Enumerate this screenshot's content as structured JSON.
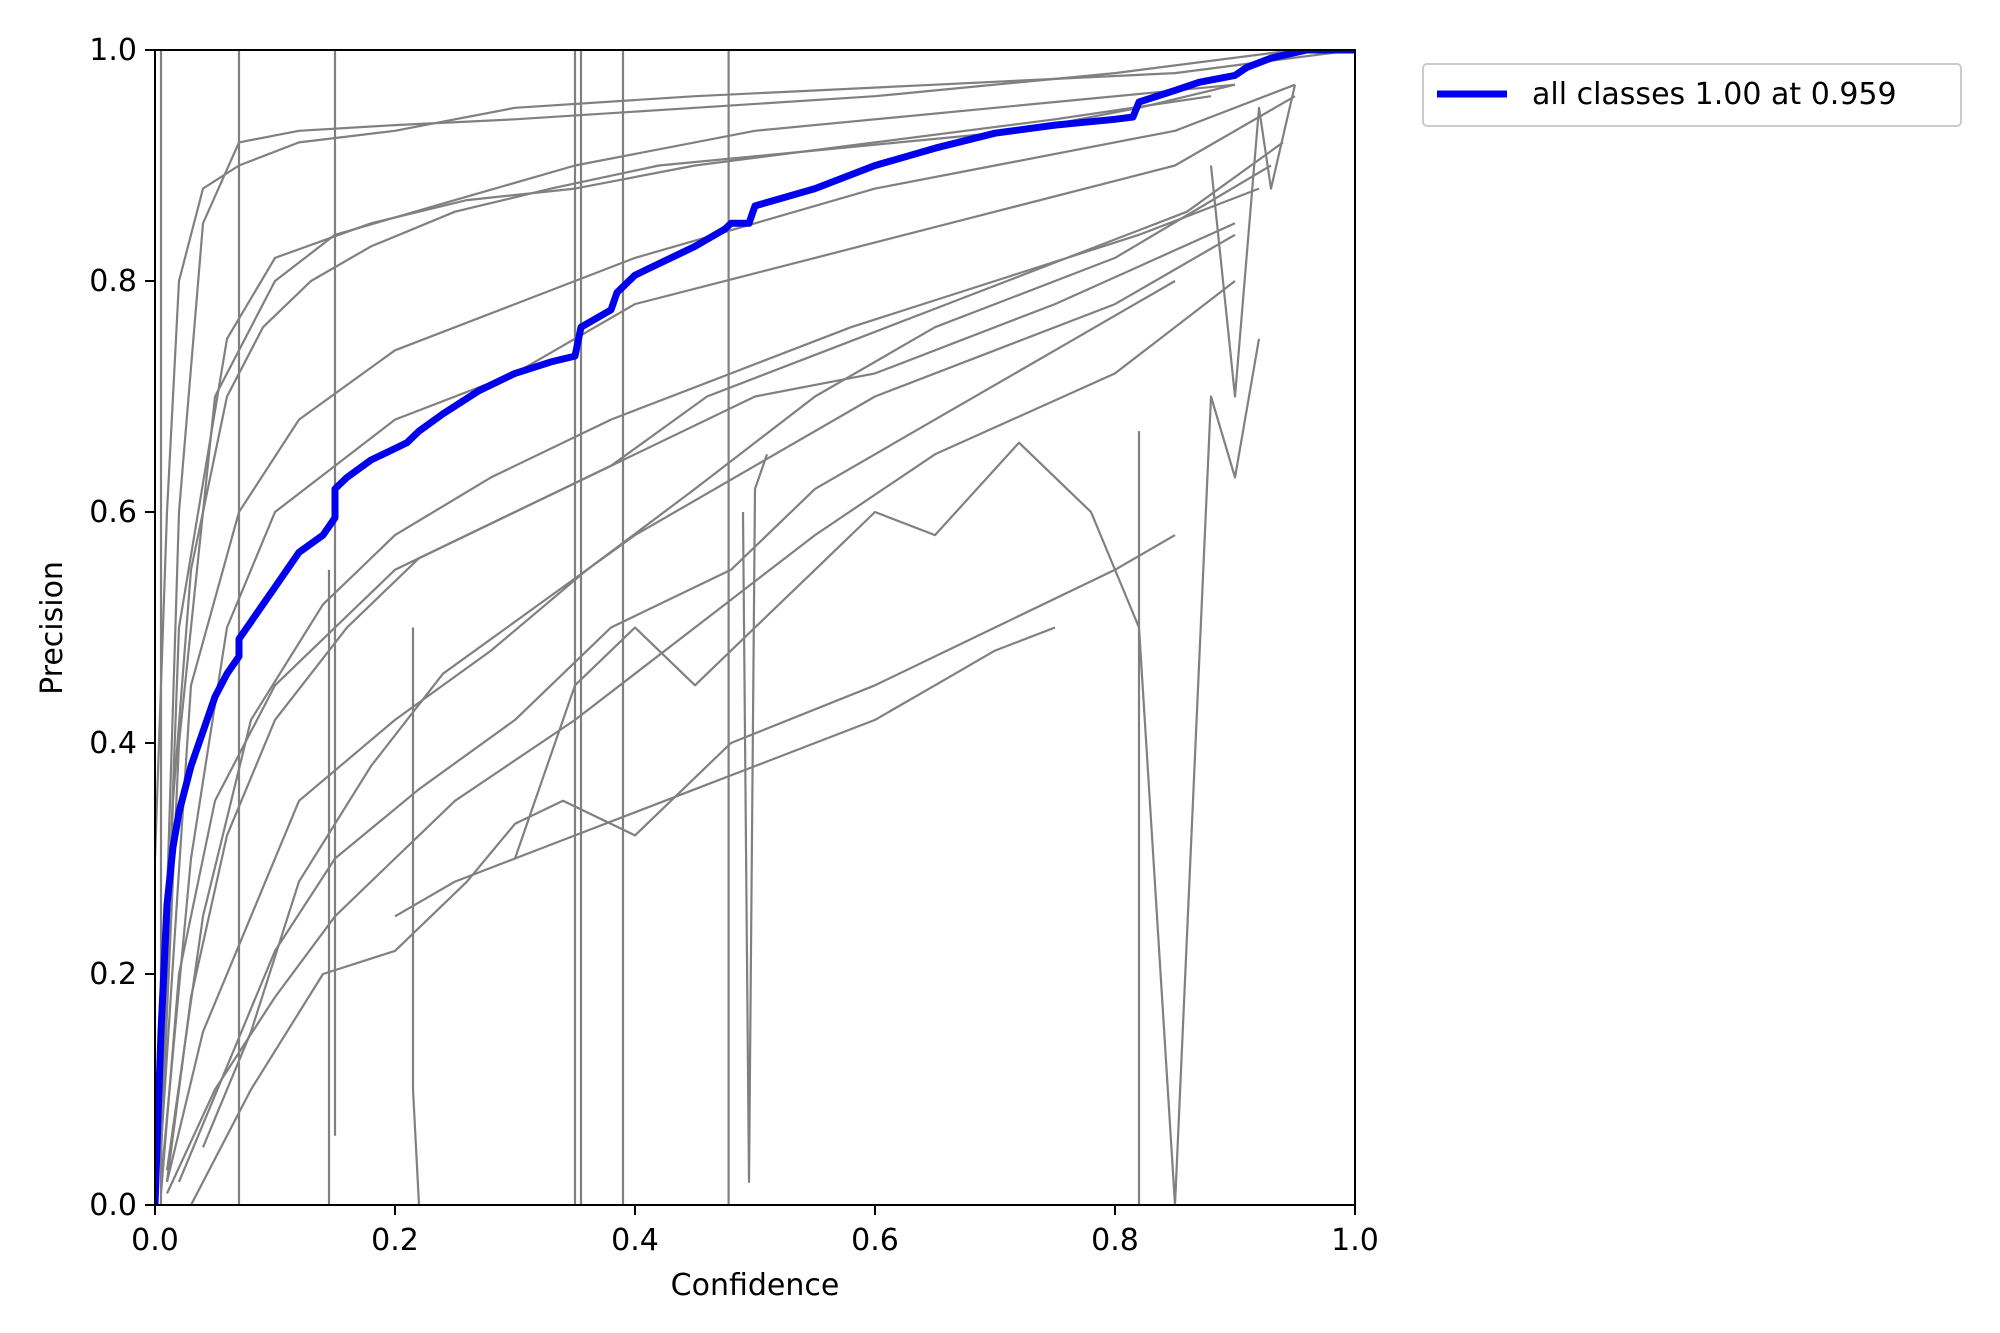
{
  "chart_data": {
    "type": "line",
    "title": "",
    "xlabel": "Confidence",
    "ylabel": "Precision",
    "xlim": [
      0.0,
      1.0
    ],
    "ylim": [
      0.0,
      1.0
    ],
    "x_ticks": [
      "0.0",
      "0.2",
      "0.4",
      "0.6",
      "0.8",
      "1.0"
    ],
    "y_ticks": [
      "0.0",
      "0.2",
      "0.4",
      "0.6",
      "0.8",
      "1.0"
    ],
    "grid": false,
    "legend_position": "outside-top-right",
    "colors": {
      "all_classes": "#0000ee",
      "per_class": "#808080"
    },
    "series": [
      {
        "name": "all classes 1.00 at 0.959",
        "color": "#0000ee",
        "x": [
          0,
          0.005,
          0.01,
          0.015,
          0.02,
          0.03,
          0.04,
          0.05,
          0.06,
          0.07,
          0.07,
          0.08,
          0.09,
          0.1,
          0.11,
          0.12,
          0.14,
          0.15,
          0.15,
          0.16,
          0.18,
          0.2,
          0.21,
          0.215,
          0.22,
          0.24,
          0.27,
          0.3,
          0.33,
          0.35,
          0.355,
          0.38,
          0.385,
          0.4,
          0.41,
          0.45,
          0.475,
          0.48,
          0.495,
          0.5,
          0.55,
          0.6,
          0.65,
          0.7,
          0.75,
          0.8,
          0.815,
          0.82,
          0.85,
          0.87,
          0.9,
          0.91,
          0.93,
          0.96,
          1.0
        ],
        "y": [
          0.0,
          0.15,
          0.26,
          0.31,
          0.34,
          0.38,
          0.41,
          0.44,
          0.46,
          0.475,
          0.49,
          0.505,
          0.52,
          0.535,
          0.55,
          0.565,
          0.58,
          0.595,
          0.62,
          0.63,
          0.645,
          0.655,
          0.66,
          0.665,
          0.67,
          0.685,
          0.705,
          0.72,
          0.73,
          0.735,
          0.76,
          0.775,
          0.79,
          0.805,
          0.81,
          0.83,
          0.845,
          0.85,
          0.85,
          0.865,
          0.88,
          0.9,
          0.915,
          0.928,
          0.935,
          0.94,
          0.942,
          0.955,
          0.965,
          0.972,
          0.978,
          0.985,
          0.993,
          1.0,
          1.0
        ]
      }
    ],
    "background_series": [
      {
        "x": [
          0.005,
          0.02,
          0.04,
          0.07,
          0.12,
          0.2,
          0.3,
          0.45,
          0.6,
          0.8,
          0.95
        ],
        "y": [
          0.1,
          0.6,
          0.85,
          0.92,
          0.93,
          0.935,
          0.94,
          0.95,
          0.96,
          0.98,
          1.0
        ]
      },
      {
        "x": [
          0.005,
          0.02,
          0.05,
          0.1,
          0.15,
          0.25,
          0.35,
          0.5,
          0.7,
          0.9
        ],
        "y": [
          0.05,
          0.4,
          0.7,
          0.8,
          0.84,
          0.87,
          0.9,
          0.93,
          0.95,
          0.97
        ]
      },
      {
        "x": [
          0.005,
          0.03,
          0.06,
          0.1,
          0.2,
          0.3,
          0.4,
          0.55,
          0.7,
          0.85,
          0.95
        ],
        "y": [
          0.02,
          0.3,
          0.5,
          0.6,
          0.68,
          0.72,
          0.78,
          0.82,
          0.86,
          0.9,
          0.96
        ]
      },
      {
        "x": [
          0.005,
          0.02,
          0.05,
          0.1,
          0.15,
          0.2,
          0.3,
          0.4,
          0.5,
          0.6,
          0.75,
          0.9
        ],
        "y": [
          0.01,
          0.2,
          0.35,
          0.45,
          0.5,
          0.55,
          0.6,
          0.65,
          0.7,
          0.72,
          0.78,
          0.85
        ]
      },
      {
        "x": [
          0.01,
          0.04,
          0.08,
          0.12,
          0.2,
          0.28,
          0.36,
          0.45,
          0.55,
          0.65,
          0.8,
          0.93
        ],
        "y": [
          0.02,
          0.15,
          0.25,
          0.35,
          0.42,
          0.48,
          0.55,
          0.62,
          0.7,
          0.76,
          0.82,
          0.9
        ]
      },
      {
        "x": [
          0.005,
          0.03,
          0.07,
          0.12,
          0.2,
          0.3,
          0.4,
          0.5,
          0.6,
          0.7,
          0.85,
          0.95
        ],
        "y": [
          0.05,
          0.45,
          0.6,
          0.68,
          0.74,
          0.78,
          0.82,
          0.85,
          0.88,
          0.9,
          0.93,
          0.97
        ]
      },
      {
        "x": [
          0.01,
          0.05,
          0.1,
          0.15,
          0.2,
          0.25,
          0.35,
          0.45,
          0.55,
          0.65,
          0.8,
          0.9
        ],
        "y": [
          0.01,
          0.1,
          0.18,
          0.25,
          0.3,
          0.35,
          0.42,
          0.5,
          0.58,
          0.65,
          0.72,
          0.8
        ]
      },
      {
        "x": [
          0.005,
          0.02,
          0.06,
          0.1,
          0.18,
          0.26,
          0.35,
          0.45,
          0.6,
          0.75,
          0.88
        ],
        "y": [
          0.08,
          0.5,
          0.75,
          0.82,
          0.85,
          0.87,
          0.88,
          0.9,
          0.92,
          0.94,
          0.96
        ]
      },
      {
        "x": [
          0.02,
          0.06,
          0.1,
          0.15,
          0.22,
          0.3,
          0.38,
          0.48,
          0.55,
          0.65,
          0.75,
          0.85
        ],
        "y": [
          0.02,
          0.12,
          0.22,
          0.3,
          0.36,
          0.42,
          0.5,
          0.55,
          0.62,
          0.68,
          0.74,
          0.8
        ]
      },
      {
        "x": [
          0.01,
          0.04,
          0.08,
          0.14,
          0.2,
          0.28,
          0.38,
          0.48,
          0.58,
          0.7,
          0.82,
          0.92
        ],
        "y": [
          0.03,
          0.25,
          0.42,
          0.52,
          0.58,
          0.63,
          0.68,
          0.72,
          0.76,
          0.8,
          0.84,
          0.88
        ]
      },
      {
        "x": [
          0.03,
          0.08,
          0.14,
          0.2,
          0.26,
          0.3,
          0.34,
          0.4,
          0.48,
          0.6,
          0.7,
          0.8,
          0.85
        ],
        "y": [
          0.0,
          0.1,
          0.2,
          0.22,
          0.28,
          0.33,
          0.35,
          0.32,
          0.4,
          0.45,
          0.5,
          0.55,
          0.58
        ]
      },
      {
        "x": [
          0.2,
          0.25,
          0.3,
          0.35,
          0.4,
          0.45,
          0.5,
          0.55,
          0.6,
          0.65,
          0.7,
          0.75
        ],
        "y": [
          0.25,
          0.28,
          0.3,
          0.32,
          0.34,
          0.36,
          0.38,
          0.4,
          0.42,
          0.45,
          0.48,
          0.5
        ]
      },
      {
        "x": [
          0.3,
          0.35,
          0.4,
          0.45,
          0.5,
          0.55,
          0.6,
          0.65,
          0.72,
          0.78,
          0.82,
          0.85,
          0.88,
          0.9,
          0.92
        ],
        "y": [
          0.3,
          0.45,
          0.5,
          0.45,
          0.5,
          0.55,
          0.6,
          0.58,
          0.66,
          0.6,
          0.5,
          0.0,
          0.7,
          0.63,
          0.75
        ]
      },
      {
        "x": [
          0.005,
          0.015,
          0.03,
          0.06,
          0.09,
          0.13,
          0.18,
          0.25,
          0.33,
          0.42,
          0.52,
          0.62,
          0.72,
          0.82,
          0.9
        ],
        "y": [
          0.04,
          0.35,
          0.55,
          0.7,
          0.76,
          0.8,
          0.83,
          0.86,
          0.88,
          0.9,
          0.91,
          0.92,
          0.93,
          0.95,
          0.97
        ]
      },
      {
        "x": [
          0.01,
          0.03,
          0.06,
          0.1,
          0.16,
          0.22,
          0.3,
          0.38,
          0.46,
          0.56,
          0.66,
          0.76,
          0.86,
          0.94
        ],
        "y": [
          0.02,
          0.18,
          0.32,
          0.42,
          0.5,
          0.56,
          0.6,
          0.64,
          0.7,
          0.74,
          0.78,
          0.82,
          0.86,
          0.92
        ]
      },
      {
        "x": [
          0.0,
          0.01,
          0.02,
          0.04,
          0.07,
          0.12,
          0.2,
          0.3,
          0.45,
          0.65,
          0.85,
          1.0
        ],
        "y": [
          0.3,
          0.6,
          0.8,
          0.88,
          0.9,
          0.92,
          0.93,
          0.95,
          0.96,
          0.97,
          0.98,
          1.0
        ]
      },
      {
        "x": [
          0.04,
          0.08,
          0.12,
          0.18,
          0.24,
          0.32,
          0.4,
          0.5,
          0.6,
          0.7,
          0.8,
          0.9
        ],
        "y": [
          0.05,
          0.15,
          0.28,
          0.38,
          0.46,
          0.52,
          0.58,
          0.64,
          0.7,
          0.74,
          0.78,
          0.84
        ]
      },
      {
        "x": [
          0.15,
          0.15,
          0.15
        ],
        "y": [
          0.06,
          1.0,
          0.5
        ]
      },
      {
        "x": [
          0.35,
          0.35
        ],
        "y": [
          0.0,
          1.0
        ]
      },
      {
        "x": [
          0.355,
          0.355
        ],
        "y": [
          0.0,
          1.0
        ]
      },
      {
        "x": [
          0.39,
          0.39
        ],
        "y": [
          0.0,
          1.0
        ]
      },
      {
        "x": [
          0.478,
          0.478
        ],
        "y": [
          0.0,
          1.0
        ]
      },
      {
        "x": [
          0.82,
          0.82
        ],
        "y": [
          0.0,
          0.67
        ]
      },
      {
        "x": [
          0.07,
          0.07
        ],
        "y": [
          0.0,
          1.0
        ]
      },
      {
        "x": [
          0.005,
          0.005
        ],
        "y": [
          0.0,
          1.0
        ]
      },
      {
        "x": [
          0.145,
          0.145
        ],
        "y": [
          0.0,
          0.55
        ]
      },
      {
        "x": [
          0.215,
          0.215,
          0.22
        ],
        "y": [
          0.5,
          0.1,
          0.0
        ]
      },
      {
        "x": [
          0.49,
          0.495,
          0.5,
          0.51
        ],
        "y": [
          0.6,
          0.02,
          0.62,
          0.65
        ]
      },
      {
        "x": [
          0.88,
          0.9,
          0.92,
          0.93,
          0.95
        ],
        "y": [
          0.9,
          0.7,
          0.95,
          0.88,
          0.97
        ]
      }
    ]
  },
  "legend": {
    "entries": [
      {
        "label": "all classes 1.00 at 0.959",
        "color": "#0000ee"
      }
    ]
  }
}
